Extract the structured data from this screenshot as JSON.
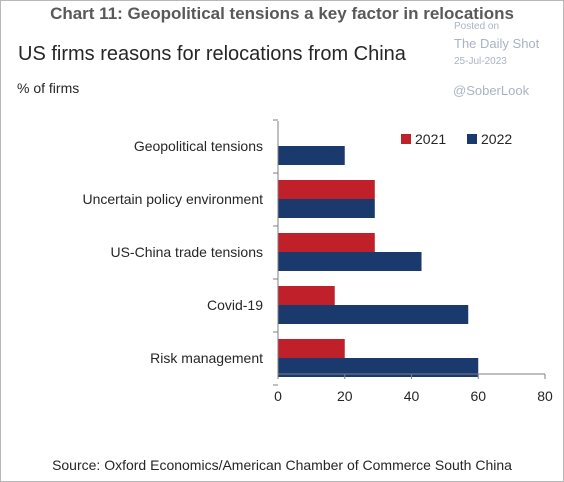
{
  "header": {
    "title": "Chart 11: Geopolitical tensions a key factor in relocations"
  },
  "watermark": {
    "posted_on": "Posted on",
    "brand": "The Daily Shot",
    "date": "25-Jul-2023",
    "handle": "@SoberLook"
  },
  "source": "Source: Oxford Economics/American Chamber of Commerce South China",
  "chart_data": {
    "type": "bar",
    "orientation": "horizontal",
    "title": "US firms reasons for relocations from China",
    "ylabel": "% of firms",
    "categories": [
      "Geopolitical tensions",
      "Uncertain policy environment",
      "US-China trade tensions",
      "Covid-19",
      "Risk management"
    ],
    "series": [
      {
        "name": "2021",
        "color": "#c0202a",
        "values": [
          null,
          29,
          29,
          17,
          20
        ]
      },
      {
        "name": "2022",
        "color": "#1a3a6e",
        "values": [
          20,
          29,
          43,
          57,
          60
        ]
      }
    ],
    "xlim": [
      0,
      80
    ],
    "xticks": [
      "0",
      "20",
      "40",
      "60",
      "80"
    ],
    "grid": false,
    "legend_position": "top-right"
  }
}
